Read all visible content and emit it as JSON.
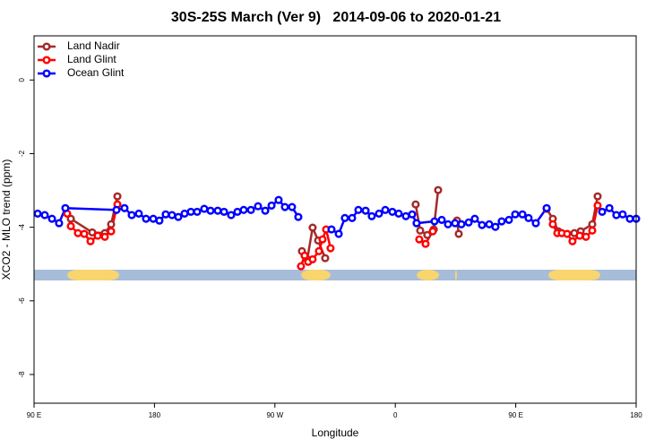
{
  "chart_data": {
    "type": "line",
    "title": "30S-25S March (Ver 9)   2014-09-06 to 2020-01-21",
    "x_label": "Longitude",
    "y_label": "XCO2 - MLO trend (ppm)",
    "xlim": [
      90,
      540
    ],
    "xticks": [
      {
        "value": 90,
        "label": "90 E"
      },
      180,
      {
        "value": 270,
        "label": "90 W"
      },
      {
        "value": 360,
        "label": "0"
      },
      {
        "value": 450,
        "label": "90 E"
      },
      {
        "value": 540,
        "label": "180"
      }
    ],
    "ylim": [
      -8.78,
      1.2
    ],
    "yticks": [
      0,
      -2,
      -4,
      -6,
      -8
    ],
    "legend": "top-left",
    "land_ranges": [
      [
        114.8,
        153.6
      ],
      [
        289.6,
        311.6
      ],
      [
        376,
        392.7
      ],
      [
        404.7,
        406
      ],
      [
        474.4,
        513.2
      ]
    ],
    "series": [
      {
        "name": "Land Nadir",
        "color": "#a52a2a",
        "x": [
          117.5,
          133.5,
          142.9,
          147.6,
          152.3,
          null,
          290.2,
          294.2,
          298.2,
          302.3,
          307.6,
          null,
          375.2,
          378.6,
          383.9,
          388.7,
          392.0,
          null,
          406.1,
          407.4,
          null,
          473.1,
          477.7,
          481.7,
          493.8,
          498.5,
          507.2,
          511.2
        ],
        "values": [
          -3.77,
          -4.14,
          -4.16,
          -3.92,
          -3.16,
          null,
          -4.65,
          -4.87,
          -4.01,
          -4.36,
          -4.84,
          null,
          -3.38,
          -4.09,
          -4.21,
          -4.06,
          -2.99,
          null,
          -3.82,
          -4.18,
          null,
          -3.5,
          -3.77,
          -4.11,
          -4.16,
          -4.11,
          -3.92,
          -3.16
        ]
      },
      {
        "name": "Land Glint",
        "color": "#ff0000",
        "x": [
          114.8,
          117.5,
          122.8,
          127.5,
          132.2,
          137.6,
          142.9,
          147.6,
          152.3,
          null,
          289.5,
          292.2,
          294.9,
          298.2,
          302.9,
          305.6,
          308.3,
          311.6,
          null,
          377.9,
          382.6,
          388.0,
          null,
          477.7,
          481.1,
          484.4,
          488.4,
          492.4,
          497.8,
          502.5,
          507.2,
          511.2
        ],
        "values": [
          -3.63,
          -3.97,
          -4.16,
          -4.18,
          -4.38,
          -4.23,
          -4.26,
          -4.11,
          -3.38,
          null,
          -5.06,
          -4.77,
          -4.94,
          -4.87,
          -4.65,
          -4.33,
          -4.06,
          -4.57,
          null,
          -4.33,
          -4.45,
          -4.11,
          null,
          -3.92,
          -4.16,
          -4.16,
          -4.18,
          -4.38,
          -4.23,
          -4.26,
          -4.09,
          -3.41
        ]
      },
      {
        "name": "Ocean Glint",
        "color": "#0000ff",
        "x": [
          92.7,
          98.0,
          103.4,
          108.7,
          113.4,
          151.6,
          157.6,
          163.0,
          168.3,
          173.7,
          179.1,
          183.7,
          188.4,
          193.1,
          197.8,
          202.5,
          207.2,
          211.9,
          217.2,
          221.9,
          227.3,
          232.0,
          237.3,
          242.0,
          246.7,
          252.1,
          257.4,
          262.8,
          267.5,
          272.8,
          277.5,
          282.8,
          287.5,
          null,
          312.3,
          317.7,
          322.3,
          327.7,
          332.4,
          337.8,
          342.4,
          347.8,
          352.5,
          357.8,
          362.5,
          367.9,
          372.6,
          375.9,
          389.3,
          394.7,
          399.4,
          404.7,
          409.4,
          414.8,
          419.4,
          424.8,
          430.2,
          434.8,
          439.5,
          444.9,
          449.6,
          455.0,
          459.6,
          465.0,
          473.1,
          null,
          514.6,
          520.0,
          525.2,
          529.9,
          535.3,
          540.0
        ],
        "values": [
          -3.63,
          -3.67,
          -3.77,
          -3.89,
          -3.48,
          -3.53,
          -3.48,
          -3.67,
          -3.63,
          -3.77,
          -3.77,
          -3.82,
          -3.65,
          -3.67,
          -3.72,
          -3.63,
          -3.58,
          -3.58,
          -3.5,
          -3.55,
          -3.55,
          -3.58,
          -3.67,
          -3.58,
          -3.53,
          -3.53,
          -3.43,
          -3.55,
          -3.41,
          -3.26,
          -3.45,
          -3.45,
          -3.72,
          null,
          -4.06,
          -4.18,
          -3.75,
          -3.75,
          -3.53,
          -3.55,
          -3.7,
          -3.63,
          -3.53,
          -3.58,
          -3.63,
          -3.7,
          -3.65,
          -3.89,
          -3.84,
          -3.8,
          -3.92,
          -3.89,
          -3.92,
          -3.87,
          -3.77,
          -3.94,
          -3.92,
          -3.99,
          -3.84,
          -3.8,
          -3.65,
          -3.65,
          -3.75,
          -3.89,
          -3.48,
          null,
          -3.58,
          -3.48,
          -3.67,
          -3.65,
          -3.77,
          -3.77
        ]
      }
    ]
  }
}
